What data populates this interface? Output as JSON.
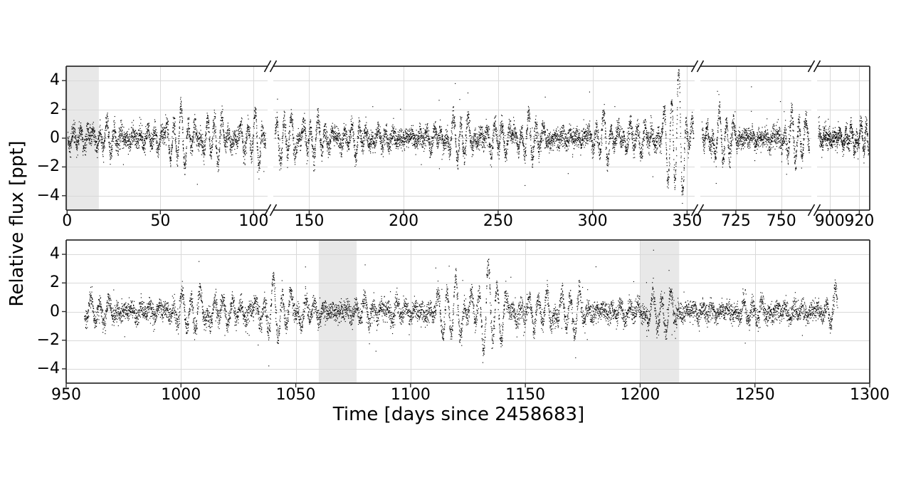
{
  "labels": {
    "xlabel": "Time [days since 2458683]",
    "ylabel": "Relative flux [ppt]"
  },
  "colors": {
    "background": "#ffffff",
    "axis": "#2f2f2f",
    "grid": "#d9d9d9",
    "shaded_band": "#e8e8e8",
    "points": "#000000",
    "text": "#000000"
  },
  "chart_data": {
    "type": "scatter",
    "title": "",
    "xlabel": "Time [days since 2458683]",
    "ylabel": "Relative flux [ppt]",
    "ylim": [
      -5,
      5
    ],
    "yticks": [
      4,
      2,
      0,
      -2,
      -4
    ],
    "grid": true,
    "legend": false,
    "marker": "1px black point",
    "panels": [
      {
        "name": "top",
        "description": "broken x-axis panel with 3 axis breaks",
        "segments": [
          {
            "xlim": [
              -0.5,
              107.5
            ],
            "xticks": [
              0,
              50,
              100
            ],
            "data_start": 0.4,
            "data_end": 106.5
          },
          {
            "xlim": [
              131,
              354
            ],
            "xticks": [
              150,
              200,
              250,
              300,
              350
            ],
            "data_start": 132,
            "data_end": 353.5
          },
          {
            "xlim": [
              705.5,
              766.5
            ],
            "xticks": [
              725,
              750
            ],
            "data_start": 706.5,
            "data_end": 765.5
          },
          {
            "xlim": [
              891.5,
              927
            ],
            "xticks": [
              900,
              920
            ],
            "data_start": 892.5,
            "data_end": 926.3
          }
        ],
        "shaded_day_ranges": [
          [
            0,
            17
          ]
        ]
      },
      {
        "name": "bottom",
        "description": "continuous x-axis panel",
        "segments": [
          {
            "xlim": [
              950,
              1300
            ],
            "xticks": [
              950,
              1000,
              1050,
              1100,
              1150,
              1200,
              1250,
              1300
            ],
            "data_start": 958,
            "data_end": 1286
          }
        ],
        "shaded_day_ranges": [
          [
            1060,
            1076.5
          ],
          [
            1200,
            1217
          ]
        ]
      }
    ],
    "signal_model": {
      "description": "dense quasi-periodic stellar variability light curve, amplitude ~±2 ppt with excursions to ±4.7 ppt",
      "cadence_days": 0.045,
      "periods_days": [
        3.6,
        4.45,
        7.9
      ],
      "period_weights": [
        0.58,
        0.42,
        0.3
      ],
      "amplitude_base": 1.0,
      "amplitude_mod": [
        {
          "period": 41,
          "amp": 0.5
        },
        {
          "period": 89,
          "amp": 0.38
        }
      ],
      "amplitude_min": 0.3,
      "boosts": [
        {
          "t": 81,
          "w": 5,
          "a": 0.8
        },
        {
          "t": 104,
          "w": 3,
          "a": 0.9
        },
        {
          "t": 344,
          "w": 5,
          "a": 1.7
        },
        {
          "t": 349,
          "w": 4,
          "a": 1.2
        },
        {
          "t": 712,
          "w": 7,
          "a": 0.6
        },
        {
          "t": 1013,
          "w": 5,
          "a": 0.9
        },
        {
          "t": 1120,
          "w": 9,
          "a": 0.7
        },
        {
          "t": 1137,
          "w": 6,
          "a": 1.0
        },
        {
          "t": 1165,
          "w": 8,
          "a": 0.6
        }
      ],
      "damps": [
        {
          "t": 197,
          "w": 16,
          "f": 0.55
        },
        {
          "t": 965,
          "w": 8,
          "f": 0.45
        },
        {
          "t": 1068,
          "w": 9,
          "f": 0.5
        },
        {
          "t": 1235,
          "w": 18,
          "f": 0.4
        }
      ],
      "noise_sigma": 0.36,
      "outlier_fraction": 0.004,
      "clip": 4.85,
      "seed": 20230683
    }
  }
}
